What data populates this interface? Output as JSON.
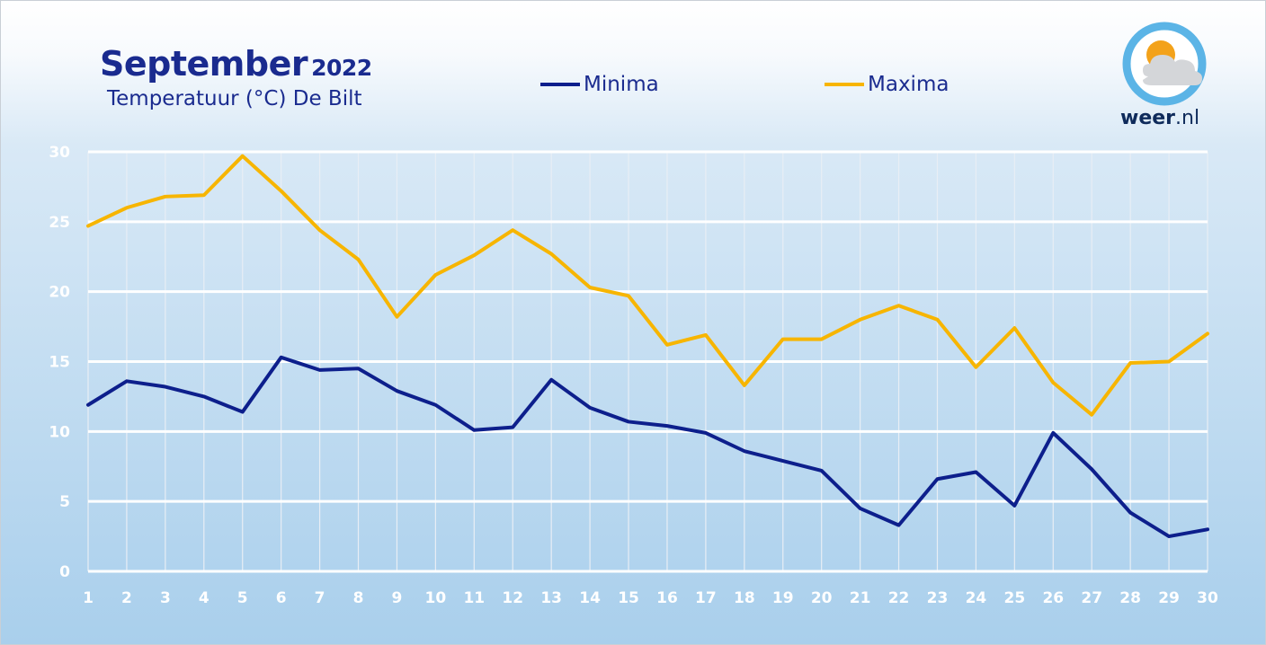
{
  "header": {
    "title": "September",
    "year": "2022",
    "subtitle": "Temperatuur (°C) De Bilt"
  },
  "legend": {
    "minima_label": "Minima",
    "maxima_label": "Maxima"
  },
  "logo": {
    "icon": "sun-cloud-icon",
    "brand_bold": "weer",
    "brand_suffix": ".nl"
  },
  "colors": {
    "minima": "#0d1f8c",
    "maxima": "#f7b500",
    "title": "#1a2b8f",
    "grid": "#ffffff"
  },
  "chart_data": {
    "type": "line",
    "x": [
      1,
      2,
      3,
      4,
      5,
      6,
      7,
      8,
      9,
      10,
      11,
      12,
      13,
      14,
      15,
      16,
      17,
      18,
      19,
      20,
      21,
      22,
      23,
      24,
      25,
      26,
      27,
      28,
      29,
      30
    ],
    "ylim": [
      0,
      30
    ],
    "yticks": [
      0,
      5,
      10,
      15,
      20,
      25,
      30
    ],
    "grid": true,
    "legend_position": "top",
    "series": [
      {
        "name": "Minima",
        "values": [
          11.9,
          13.6,
          13.2,
          12.5,
          11.4,
          15.3,
          14.4,
          14.5,
          12.9,
          11.9,
          10.1,
          10.3,
          13.7,
          11.7,
          10.7,
          10.4,
          9.9,
          8.6,
          7.9,
          7.2,
          4.5,
          3.3,
          6.6,
          7.1,
          4.7,
          9.9,
          7.3,
          4.2,
          2.5,
          3.0
        ]
      },
      {
        "name": "Maxima",
        "values": [
          24.7,
          26.0,
          26.8,
          26.9,
          29.7,
          27.2,
          24.4,
          22.3,
          18.2,
          21.2,
          22.6,
          24.4,
          22.7,
          20.3,
          19.7,
          16.2,
          16.9,
          13.3,
          16.6,
          16.6,
          18.0,
          19.0,
          18.0,
          14.6,
          17.4,
          13.5,
          11.2,
          14.9,
          15.0,
          17.0
        ]
      }
    ]
  }
}
